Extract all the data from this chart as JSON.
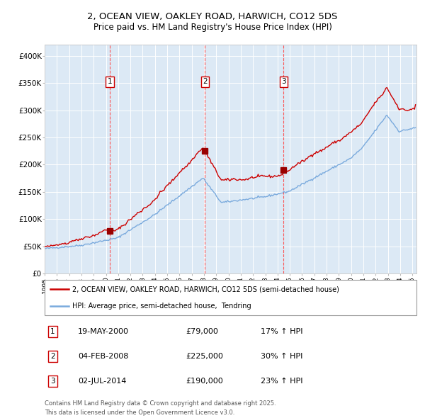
{
  "title1": "2, OCEAN VIEW, OAKLEY ROAD, HARWICH, CO12 5DS",
  "title2": "Price paid vs. HM Land Registry's House Price Index (HPI)",
  "legend1": "2, OCEAN VIEW, OAKLEY ROAD, HARWICH, CO12 5DS (semi-detached house)",
  "legend2": "HPI: Average price, semi-detached house,  Tendring",
  "sale1_date": "19-MAY-2000",
  "sale1_price": 79000,
  "sale1_hpi": "17% ↑ HPI",
  "sale2_date": "04-FEB-2008",
  "sale2_price": 225000,
  "sale2_hpi": "30% ↑ HPI",
  "sale3_date": "02-JUL-2014",
  "sale3_price": 190000,
  "sale3_hpi": "23% ↑ HPI",
  "footnote1": "Contains HM Land Registry data © Crown copyright and database right 2025.",
  "footnote2": "This data is licensed under the Open Government Licence v3.0.",
  "property_color": "#cc0000",
  "hpi_color": "#7aaadd",
  "bg_color": "#dce9f5",
  "grid_color": "#ffffff",
  "vline_color": "#ff4444",
  "marker_color": "#990000"
}
